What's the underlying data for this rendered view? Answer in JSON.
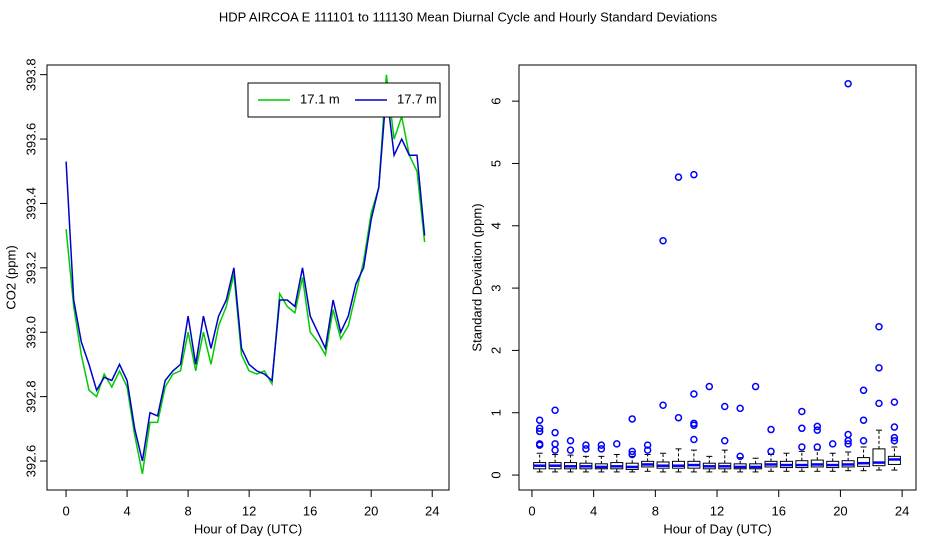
{
  "title": "HDP   AIRCOA E   111101 to 111130   Mean Diurnal Cycle and Hourly Standard Deviations",
  "chart_data": [
    {
      "type": "line",
      "xlabel": "Hour of Day (UTC)",
      "ylabel": "CO2 (ppm)",
      "xlim": [
        -1.25,
        25.1
      ],
      "ylim": [
        392.51,
        393.83
      ],
      "xticks": [
        0,
        4,
        8,
        12,
        16,
        20,
        24
      ],
      "yticks": [
        392.6,
        392.8,
        {
          "value": 393,
          "label": "393.0"
        },
        393.2,
        393.4,
        393.6,
        393.8
      ],
      "legend": "top-right",
      "x": [
        0,
        0.5,
        1,
        1.5,
        2,
        2.5,
        3,
        3.5,
        4,
        4.5,
        5,
        5.5,
        6,
        6.5,
        7,
        7.5,
        8,
        8.5,
        9,
        9.5,
        10,
        10.5,
        11,
        11.5,
        12,
        12.5,
        13,
        13.5,
        14,
        14.5,
        15,
        15.5,
        16,
        16.5,
        17,
        17.5,
        18,
        18.5,
        19,
        19.5,
        20,
        20.5,
        21,
        21.5,
        22,
        22.5,
        23,
        23.5
      ],
      "series": [
        {
          "name": "17.1 m",
          "color": "#00cc00",
          "values": [
            393.32,
            393.08,
            392.93,
            392.82,
            392.8,
            392.87,
            392.83,
            392.88,
            392.83,
            392.68,
            392.56,
            392.72,
            392.72,
            392.83,
            392.87,
            392.88,
            393.0,
            392.88,
            393.0,
            392.9,
            393.02,
            393.08,
            393.18,
            392.93,
            392.88,
            392.87,
            392.88,
            392.84,
            393.12,
            393.08,
            393.06,
            393.17,
            393.0,
            392.97,
            392.93,
            393.07,
            392.98,
            393.02,
            393.12,
            393.22,
            393.37,
            393.45,
            393.8,
            393.6,
            393.67,
            393.55,
            393.5,
            393.28
          ]
        },
        {
          "name": "17.7 m",
          "color": "#0000cc",
          "values": [
            393.53,
            393.1,
            392.97,
            392.9,
            392.82,
            392.86,
            392.85,
            392.9,
            392.85,
            392.7,
            392.6,
            392.75,
            392.74,
            392.85,
            392.88,
            392.9,
            393.05,
            392.9,
            393.05,
            392.95,
            393.05,
            393.1,
            393.2,
            392.95,
            392.9,
            392.88,
            392.87,
            392.85,
            393.1,
            393.1,
            393.08,
            393.2,
            393.05,
            393.0,
            392.95,
            393.1,
            393.0,
            393.05,
            393.15,
            393.2,
            393.35,
            393.45,
            393.75,
            393.55,
            393.6,
            393.55,
            393.55,
            393.3
          ]
        }
      ]
    },
    {
      "type": "box",
      "xlabel": "Hour of Day (UTC)",
      "ylabel": "Standard Deviation (ppm)",
      "xlim": [
        -0.84,
        24.9
      ],
      "ylim": [
        -0.24,
        6.58
      ],
      "xticks": [
        0,
        4,
        8,
        12,
        16,
        20,
        24
      ],
      "yticks": [
        0,
        1,
        2,
        3,
        4,
        5,
        6
      ],
      "color": "#0000ff",
      "x": [
        0.5,
        1.5,
        2.5,
        3.5,
        4.5,
        5.5,
        6.5,
        7.5,
        8.5,
        9.5,
        10.5,
        11.5,
        12.5,
        13.5,
        14.5,
        15.5,
        16.5,
        17.5,
        18.5,
        19.5,
        20.5,
        21.5,
        22.5,
        23.5
      ],
      "whisker_low": [
        0.05,
        0.05,
        0.05,
        0.05,
        0.05,
        0.05,
        0.05,
        0.06,
        0.05,
        0.05,
        0.05,
        0.05,
        0.05,
        0.05,
        0.05,
        0.06,
        0.06,
        0.06,
        0.06,
        0.06,
        0.07,
        0.07,
        0.08,
        0.08
      ],
      "q1": [
        0.1,
        0.1,
        0.1,
        0.1,
        0.1,
        0.1,
        0.09,
        0.13,
        0.11,
        0.11,
        0.11,
        0.1,
        0.1,
        0.1,
        0.1,
        0.13,
        0.12,
        0.12,
        0.13,
        0.12,
        0.13,
        0.14,
        0.15,
        0.17
      ],
      "median": [
        0.15,
        0.15,
        0.14,
        0.14,
        0.13,
        0.14,
        0.13,
        0.17,
        0.15,
        0.15,
        0.16,
        0.14,
        0.14,
        0.13,
        0.13,
        0.17,
        0.16,
        0.16,
        0.17,
        0.16,
        0.17,
        0.19,
        0.2,
        0.25
      ],
      "q3": [
        0.2,
        0.2,
        0.2,
        0.19,
        0.18,
        0.2,
        0.19,
        0.22,
        0.21,
        0.22,
        0.22,
        0.19,
        0.19,
        0.18,
        0.18,
        0.22,
        0.22,
        0.23,
        0.24,
        0.22,
        0.23,
        0.28,
        0.42,
        0.3
      ],
      "whisker_high": [
        0.35,
        0.33,
        0.32,
        0.3,
        0.3,
        0.33,
        0.3,
        0.33,
        0.35,
        0.42,
        0.4,
        0.3,
        0.4,
        0.28,
        0.27,
        0.33,
        0.35,
        0.38,
        0.4,
        0.35,
        0.37,
        0.45,
        0.72,
        0.45
      ],
      "outliers": [
        [
          0.88,
          0.75,
          0.7,
          0.5,
          0.48
        ],
        [
          1.04,
          0.68,
          0.5,
          0.4
        ],
        [
          0.55,
          0.4
        ],
        [
          0.48,
          0.42
        ],
        [
          0.48,
          0.42
        ],
        [
          0.5
        ],
        [
          0.9,
          0.38,
          0.33
        ],
        [
          0.48,
          0.4
        ],
        [
          3.76,
          1.12
        ],
        [
          4.78,
          0.92
        ],
        [
          4.82,
          1.3,
          0.83,
          0.8,
          0.57
        ],
        [
          1.42
        ],
        [
          1.1,
          0.55
        ],
        [
          1.07,
          0.3
        ],
        [
          1.42
        ],
        [
          0.73,
          0.38
        ],
        [],
        [
          1.02,
          0.75,
          0.45
        ],
        [
          0.78,
          0.72,
          0.45
        ],
        [
          0.5
        ],
        [
          6.28,
          0.65,
          0.55,
          0.5
        ],
        [
          1.36,
          0.88,
          0.55
        ],
        [
          2.38,
          1.72,
          1.15
        ],
        [
          1.17,
          0.77,
          0.6,
          0.55
        ]
      ]
    }
  ]
}
